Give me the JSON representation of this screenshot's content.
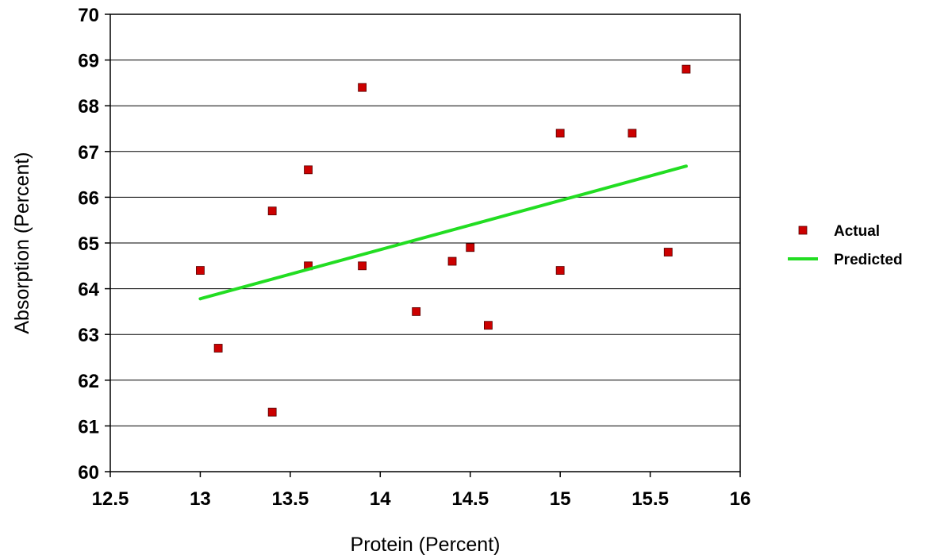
{
  "chart_data": {
    "type": "scatter",
    "title": "",
    "xlabel": "Protein (Percent)",
    "ylabel": "Absorption (Percent)",
    "xlim": [
      12.5,
      16
    ],
    "ylim": [
      60,
      70
    ],
    "x_ticks": [
      "12.5",
      "13",
      "13.5",
      "14",
      "14.5",
      "15",
      "15.5",
      "16"
    ],
    "y_ticks": [
      "60",
      "61",
      "62",
      "63",
      "64",
      "65",
      "66",
      "67",
      "68",
      "69",
      "70"
    ],
    "grid": "horizontal",
    "legend_position": "right",
    "series": [
      {
        "name": "Actual",
        "kind": "markers",
        "color": "#cc0000",
        "points": [
          {
            "x": 13.0,
            "y": 64.4
          },
          {
            "x": 13.1,
            "y": 62.7
          },
          {
            "x": 13.4,
            "y": 65.7
          },
          {
            "x": 13.4,
            "y": 61.3
          },
          {
            "x": 13.6,
            "y": 66.6
          },
          {
            "x": 13.6,
            "y": 64.5
          },
          {
            "x": 13.9,
            "y": 68.4
          },
          {
            "x": 13.9,
            "y": 64.5
          },
          {
            "x": 14.2,
            "y": 63.5
          },
          {
            "x": 14.4,
            "y": 64.6
          },
          {
            "x": 14.5,
            "y": 64.9
          },
          {
            "x": 14.6,
            "y": 63.2
          },
          {
            "x": 15.0,
            "y": 67.4
          },
          {
            "x": 15.0,
            "y": 64.4
          },
          {
            "x": 15.4,
            "y": 67.4
          },
          {
            "x": 15.6,
            "y": 64.8
          },
          {
            "x": 15.7,
            "y": 68.8
          }
        ]
      },
      {
        "name": "Predicted",
        "kind": "line",
        "color": "#22dd22",
        "points": [
          {
            "x": 13.0,
            "y": 63.78
          },
          {
            "x": 15.7,
            "y": 66.68
          }
        ]
      }
    ]
  }
}
